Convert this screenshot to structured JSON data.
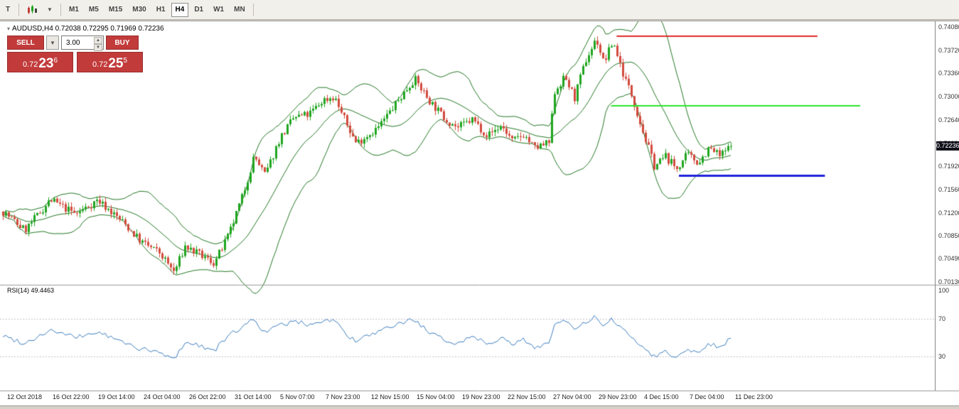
{
  "toolbar": {
    "tool_button": "T",
    "timeframes": [
      {
        "label": "M1",
        "active": false
      },
      {
        "label": "M5",
        "active": false
      },
      {
        "label": "M15",
        "active": false
      },
      {
        "label": "M30",
        "active": false
      },
      {
        "label": "H1",
        "active": false
      },
      {
        "label": "H4",
        "active": true
      },
      {
        "label": "D1",
        "active": false
      },
      {
        "label": "W1",
        "active": false
      },
      {
        "label": "MN",
        "active": false
      }
    ]
  },
  "chart": {
    "header": "AUDUSD,H4 0.72038 0.72295 0.71969 0.72236",
    "current_price": "0.72236"
  },
  "trade_panel": {
    "sell_label": "SELL",
    "buy_label": "BUY",
    "volume": "3.00",
    "sell_price_main": "0.72",
    "sell_price_big": "23",
    "sell_price_sup": "6",
    "buy_price_main": "0.72",
    "buy_price_big": "25",
    "buy_price_sup": "5"
  },
  "rsi_panel": {
    "label": "RSI(14) 49.4463"
  },
  "chart_data": {
    "type": "candlestick",
    "title": "AUDUSD,H4",
    "symbol": "AUDUSD",
    "timeframe": "H4",
    "open": 0.72038,
    "high": 0.72295,
    "low": 0.71969,
    "close": 0.72236,
    "y_ticks": [
      "0.74080",
      "0.73720",
      "0.73360",
      "0.73000",
      "0.72640",
      "0.72280",
      "0.71920",
      "0.71560",
      "0.71200",
      "0.70850",
      "0.70490",
      "0.70130"
    ],
    "x_labels": [
      "12 Oct 2018",
      "16 Oct 22:00",
      "19 Oct 14:00",
      "24 Oct 04:00",
      "26 Oct 22:00",
      "31 Oct 14:00",
      "5 Nov 07:00",
      "7 Nov 23:00",
      "12 Nov 15:00",
      "15 Nov 04:00",
      "19 Nov 23:00",
      "22 Nov 15:00",
      "27 Nov 04:00",
      "29 Nov 23:00",
      "4 Dec 15:00",
      "7 Dec 04:00",
      "11 Dec 23:00"
    ],
    "price_axis": {
      "top": 0.74124,
      "bottom": 0.70108
    },
    "candle_count": 257,
    "price_path": [
      [
        0.0,
        0.7122
      ],
      [
        0.03,
        0.7093
      ],
      [
        0.065,
        0.714
      ],
      [
        0.1,
        0.7118
      ],
      [
        0.13,
        0.714
      ],
      [
        0.165,
        0.7105
      ],
      [
        0.19,
        0.7075
      ],
      [
        0.215,
        0.7058
      ],
      [
        0.235,
        0.7028
      ],
      [
        0.25,
        0.7068
      ],
      [
        0.27,
        0.7055
      ],
      [
        0.29,
        0.7042
      ],
      [
        0.31,
        0.7085
      ],
      [
        0.33,
        0.715
      ],
      [
        0.345,
        0.7208
      ],
      [
        0.36,
        0.7178
      ],
      [
        0.38,
        0.7235
      ],
      [
        0.4,
        0.7268
      ],
      [
        0.42,
        0.7272
      ],
      [
        0.44,
        0.7295
      ],
      [
        0.455,
        0.73
      ],
      [
        0.47,
        0.7262
      ],
      [
        0.485,
        0.7228
      ],
      [
        0.5,
        0.724
      ],
      [
        0.515,
        0.7252
      ],
      [
        0.535,
        0.7282
      ],
      [
        0.565,
        0.7328
      ],
      [
        0.585,
        0.7295
      ],
      [
        0.605,
        0.7268
      ],
      [
        0.625,
        0.7252
      ],
      [
        0.645,
        0.7265
      ],
      [
        0.665,
        0.724
      ],
      [
        0.685,
        0.7255
      ],
      [
        0.7,
        0.723
      ],
      [
        0.715,
        0.7242
      ],
      [
        0.73,
        0.722
      ],
      [
        0.75,
        0.7228
      ],
      [
        0.758,
        0.731
      ],
      [
        0.772,
        0.733
      ],
      [
        0.785,
        0.7298
      ],
      [
        0.8,
        0.7355
      ],
      [
        0.815,
        0.739
      ],
      [
        0.825,
        0.7352
      ],
      [
        0.838,
        0.7386
      ],
      [
        0.852,
        0.7335
      ],
      [
        0.865,
        0.7298
      ],
      [
        0.88,
        0.7242
      ],
      [
        0.895,
        0.7192
      ],
      [
        0.91,
        0.7208
      ],
      [
        0.925,
        0.7188
      ],
      [
        0.94,
        0.721
      ],
      [
        0.955,
        0.7198
      ],
      [
        0.97,
        0.722
      ],
      [
        0.985,
        0.7208
      ],
      [
        1.0,
        0.72236
      ]
    ],
    "bollinger": {
      "period": 20,
      "deviation": 2,
      "color": "#267a26"
    },
    "hlines": [
      {
        "price": 0.7394,
        "t1": 0.657,
        "t2": 0.873,
        "color": "#e02a2a",
        "width": 2
      },
      {
        "price": 0.7286,
        "t1": 0.651,
        "t2": 0.919,
        "color": "#2ce52c",
        "width": 2
      },
      {
        "price": 0.7178,
        "t1": 0.724,
        "t2": 0.881,
        "color": "#2020dd",
        "width": 3
      }
    ],
    "rsi": {
      "label": "RSI(14) 49.4463",
      "period": 14,
      "value": 49.4463,
      "levels": [
        "100",
        "70",
        "30"
      ],
      "line_color": "#4080c0",
      "path": [
        [
          0.0,
          52
        ],
        [
          0.03,
          44
        ],
        [
          0.065,
          58
        ],
        [
          0.1,
          50
        ],
        [
          0.13,
          56
        ],
        [
          0.165,
          45
        ],
        [
          0.19,
          38
        ],
        [
          0.215,
          34
        ],
        [
          0.235,
          27
        ],
        [
          0.25,
          45
        ],
        [
          0.27,
          42
        ],
        [
          0.29,
          36
        ],
        [
          0.31,
          52
        ],
        [
          0.33,
          62
        ],
        [
          0.345,
          70
        ],
        [
          0.36,
          55
        ],
        [
          0.38,
          63
        ],
        [
          0.4,
          67
        ],
        [
          0.42,
          64
        ],
        [
          0.44,
          68
        ],
        [
          0.455,
          69
        ],
        [
          0.47,
          55
        ],
        [
          0.485,
          45
        ],
        [
          0.5,
          52
        ],
        [
          0.515,
          55
        ],
        [
          0.535,
          62
        ],
        [
          0.565,
          70
        ],
        [
          0.585,
          55
        ],
        [
          0.605,
          48
        ],
        [
          0.625,
          44
        ],
        [
          0.645,
          52
        ],
        [
          0.665,
          44
        ],
        [
          0.685,
          50
        ],
        [
          0.7,
          42
        ],
        [
          0.715,
          48
        ],
        [
          0.73,
          40
        ],
        [
          0.75,
          44
        ],
        [
          0.758,
          65
        ],
        [
          0.772,
          68
        ],
        [
          0.785,
          58
        ],
        [
          0.8,
          66
        ],
        [
          0.815,
          72
        ],
        [
          0.825,
          60
        ],
        [
          0.838,
          70
        ],
        [
          0.852,
          58
        ],
        [
          0.865,
          50
        ],
        [
          0.88,
          40
        ],
        [
          0.895,
          30
        ],
        [
          0.91,
          36
        ],
        [
          0.925,
          28
        ],
        [
          0.94,
          38
        ],
        [
          0.955,
          35
        ],
        [
          0.97,
          44
        ],
        [
          0.985,
          40
        ],
        [
          1.0,
          49.4463
        ]
      ]
    },
    "colors": {
      "up": "#1fa51f",
      "down": "#d24a3d"
    }
  }
}
